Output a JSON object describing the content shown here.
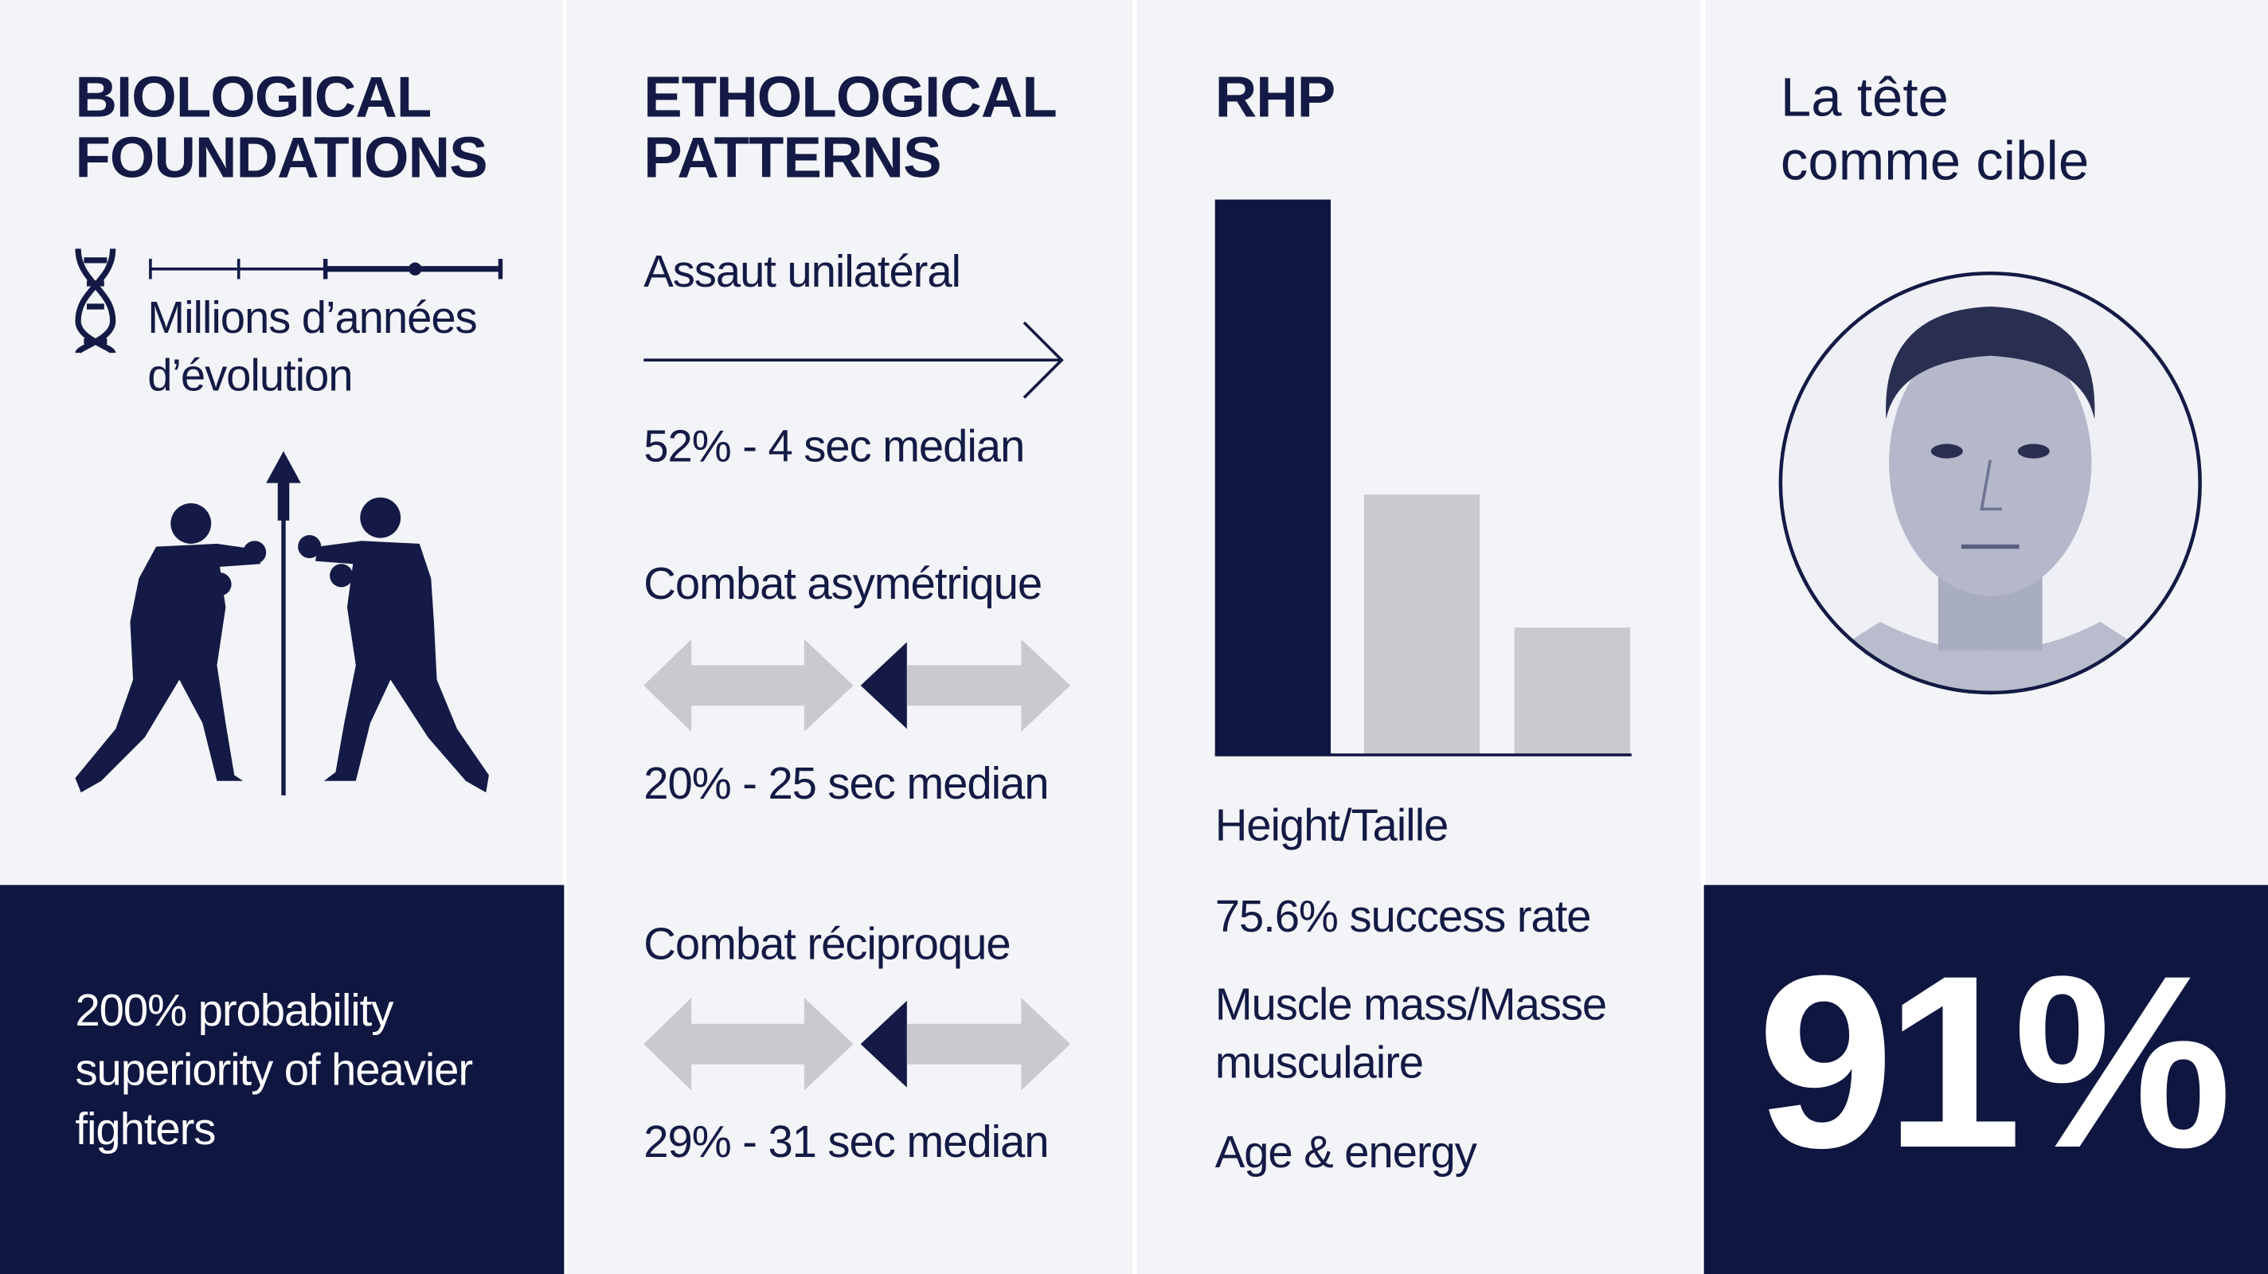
{
  "panels": [
    {
      "title": [
        "BIOLOGICAL",
        "FOUNDATIONS"
      ],
      "timeline_label": [
        "Millions d’années",
        "d’évolution"
      ],
      "footer": [
        "200% probability",
        "superiority of heavier",
        "fighters"
      ]
    },
    {
      "title": [
        "ETHOLOGICAL",
        "PATTERNS"
      ],
      "items": [
        {
          "label": "Assaut unilatéral",
          "stat": "52% - 4 sec median"
        },
        {
          "label": "Combat asymétrique",
          "stat": "20% - 25 sec median"
        },
        {
          "label": "Combat réciproque",
          "stat": "29% - 31 sec median"
        }
      ]
    },
    {
      "title": "RHP",
      "factors": [
        "Height/Taille",
        "75.6% success rate",
        "Muscle mass/Masse",
        "musculaire",
        "Age & energy"
      ]
    },
    {
      "title": [
        "La tête",
        "comme cible"
      ],
      "stat": "91%"
    }
  ]
}
